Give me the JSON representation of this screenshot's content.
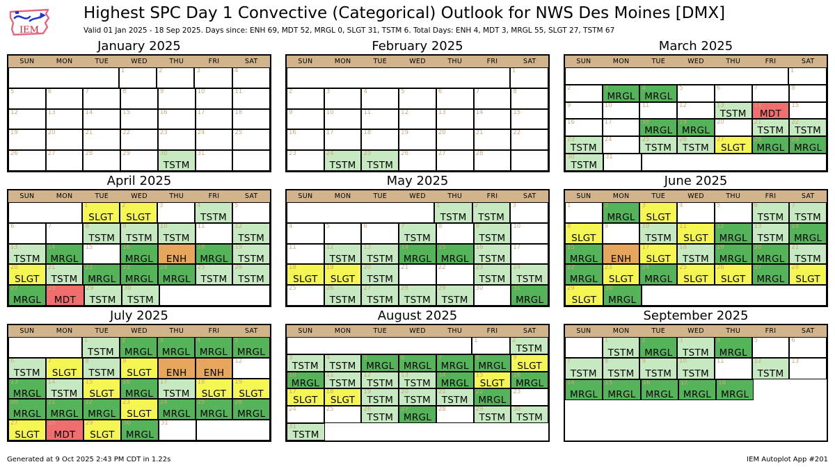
{
  "header": {
    "title": "Highest SPC Day 1 Convective (Categorical) Outlook for NWS Des Moines [DMX]",
    "subtitle": "Valid 01 Jan 2025 - 18 Sep 2025. Days since: ENH 69, MDT 52, MRGL 0, SLGT 31, TSTM 6. Total Days: ENH 4, MDT 3, MRGL 55, SLGT 27, TSTM 67",
    "logo_text": "IEM"
  },
  "footer": {
    "left": "Generated at 9 Oct 2025 2:43 PM CDT in 1.22s",
    "right": "IEM Autoplot App #201"
  },
  "chart_data": {
    "type": "heatmap",
    "title": "Highest SPC Day 1 Convective (Categorical) Outlook for NWS Des Moines [DMX]",
    "subtitle": "Valid 01 Jan 2025 - 18 Sep 2025. Days since: ENH 69, MDT 52, MRGL 0, SLGT 31, TSTM 6. Total Days: ENH 4, MDT 3, MRGL 55, SLGT 27, TSTM 67",
    "weekdays": [
      "SUN",
      "MON",
      "TUE",
      "WED",
      "THU",
      "FRI",
      "SAT"
    ],
    "categories": [
      "TSTM",
      "MRGL",
      "SLGT",
      "ENH",
      "MDT"
    ],
    "colors": {
      "TSTM": "#C6E9C1",
      "MRGL": "#55B45A",
      "SLGT": "#F5F554",
      "ENH": "#E6A75C",
      "MDT": "#F06E6E",
      "none": "#FFFFFF",
      "weekday_band": "#D2B48C",
      "day_number": "#CDA878",
      "grid_line": "#000000"
    },
    "cell_token_format": "\"bN\"=blank spanning N columns, \"bnN\"=borderless blank spanning N columns, \"D\"=day D no outlook, \"D:CAT\"=day D with highest categorical outlook CAT",
    "months": [
      {
        "name": "January 2025",
        "weeks": [
          [
            "b3",
            "1",
            "2",
            "3",
            "4"
          ],
          [
            "5",
            "6",
            "7",
            "8",
            "9",
            "10",
            "11"
          ],
          [
            "12",
            "13",
            "14",
            "15",
            "16",
            "17",
            "18"
          ],
          [
            "19",
            "20",
            "21",
            "22",
            "23",
            "24",
            "25"
          ],
          [
            "26",
            "27",
            "28",
            "29",
            "30:TSTM",
            "31",
            "b1"
          ]
        ]
      },
      {
        "name": "February 2025",
        "weeks": [
          [
            "b6",
            "1"
          ],
          [
            "2",
            "3",
            "4",
            "5",
            "6",
            "7",
            "8"
          ],
          [
            "9",
            "10",
            "11",
            "12",
            "13",
            "14",
            "15"
          ],
          [
            "16",
            "17",
            "18",
            "19",
            "20",
            "21",
            "22"
          ],
          [
            "23",
            "24:TSTM",
            "25:TSTM",
            "26",
            "27",
            "28",
            "b1"
          ]
        ]
      },
      {
        "name": "March 2025",
        "weeks": [
          [
            "b6",
            "1"
          ],
          [
            "2",
            "3:MRGL",
            "4:MRGL",
            "5",
            "6",
            "7",
            "8"
          ],
          [
            "9",
            "10",
            "11",
            "12",
            "13:TSTM",
            "14:MDT",
            "15"
          ],
          [
            "16",
            "17",
            "18:MRGL",
            "19:MRGL",
            "20",
            "21:TSTM",
            "22:TSTM"
          ],
          [
            "23:TSTM",
            "24",
            "25:TSTM",
            "26:TSTM",
            "27:SLGT",
            "28:MRGL",
            "29:MRGL"
          ],
          [
            "30:TSTM",
            "31",
            "b5"
          ]
        ]
      },
      {
        "name": "April 2025",
        "weeks": [
          [
            "b2",
            "1:SLGT",
            "2:SLGT",
            "3",
            "4:TSTM",
            "5"
          ],
          [
            "6",
            "7",
            "8:TSTM",
            "9:TSTM",
            "10:TSTM",
            "11",
            "12:TSTM"
          ],
          [
            "13:TSTM",
            "14:MRGL",
            "15",
            "16:MRGL",
            "17:ENH",
            "18:MRGL",
            "19:TSTM"
          ],
          [
            "20:SLGT",
            "21:TSTM",
            "22:MRGL",
            "23:MRGL",
            "24:MRGL",
            "25:TSTM",
            "26:TSTM"
          ],
          [
            "27:MRGL",
            "28:MDT",
            "29:TSTM",
            "30:TSTM",
            "b3"
          ]
        ]
      },
      {
        "name": "May 2025",
        "weeks": [
          [
            "b4",
            "1:TSTM",
            "2:TSTM",
            "3"
          ],
          [
            "4",
            "5",
            "6",
            "7:TSTM",
            "8",
            "9:TSTM",
            "10"
          ],
          [
            "11",
            "12:TSTM",
            "13:TSTM",
            "14:MRGL",
            "15:MRGL",
            "16:TSTM",
            "17"
          ],
          [
            "18:SLGT",
            "19:SLGT",
            "20:TSTM",
            "21",
            "22",
            "23:TSTM",
            "24:TSTM"
          ],
          [
            "25",
            "26:TSTM",
            "27:TSTM",
            "28:TSTM",
            "29:TSTM",
            "30",
            "31:MRGL"
          ]
        ]
      },
      {
        "name": "June 2025",
        "weeks": [
          [
            "1",
            "2:MRGL",
            "3:SLGT",
            "4",
            "5",
            "6:TSTM",
            "7:TSTM"
          ],
          [
            "8:SLGT",
            "9",
            "10:TSTM",
            "11:SLGT",
            "12:MRGL",
            "13:TSTM",
            "14:MRGL"
          ],
          [
            "15:MRGL",
            "16:ENH",
            "17:SLGT",
            "18:TSTM",
            "19:MRGL",
            "20:MRGL",
            "21:TSTM"
          ],
          [
            "22:MRGL",
            "23:SLGT",
            "24:MRGL",
            "25:SLGT",
            "26:SLGT",
            "27:MRGL",
            "28:SLGT"
          ],
          [
            "29:SLGT",
            "30:MRGL",
            "b5"
          ]
        ]
      },
      {
        "name": "July 2025",
        "weeks": [
          [
            "b2",
            "1:TSTM",
            "2:MRGL",
            "3:MRGL",
            "4:MRGL",
            "5:MRGL"
          ],
          [
            "6:TSTM",
            "7:SLGT",
            "8:TSTM",
            "9:SLGT",
            "10:ENH",
            "11:ENH",
            "12"
          ],
          [
            "13:MRGL",
            "14:TSTM",
            "15:SLGT",
            "16:MRGL",
            "17:TSTM",
            "18:SLGT",
            "19:SLGT"
          ],
          [
            "20:MRGL",
            "21:MRGL",
            "22:MRGL",
            "23:SLGT",
            "24:MRGL",
            "25:MRGL",
            "26:MRGL"
          ],
          [
            "27:SLGT",
            "28:MDT",
            "29:SLGT",
            "30:MRGL",
            "31",
            "b2"
          ]
        ]
      },
      {
        "name": "August 2025",
        "weeks": [
          [
            "b5",
            "1",
            "2:TSTM"
          ],
          [
            "3:TSTM",
            "4:TSTM",
            "5:MRGL",
            "6:MRGL",
            "7:MRGL",
            "8:MRGL",
            "9:SLGT"
          ],
          [
            "10:MRGL",
            "11:TSTM",
            "12:TSTM",
            "13:TSTM",
            "14:MRGL",
            "15:SLGT",
            "16:MRGL"
          ],
          [
            "17:SLGT",
            "18:SLGT",
            "19:TSTM",
            "20:TSTM",
            "21:TSTM",
            "22:MRGL",
            "23"
          ],
          [
            "24",
            "25",
            "26:TSTM",
            "27:MRGL",
            "28",
            "29:TSTM",
            "30:TSTM"
          ],
          [
            "31:TSTM",
            "bn6"
          ]
        ]
      },
      {
        "name": "September 2025",
        "weeks": [
          [
            "b1",
            "1:TSTM",
            "2:MRGL",
            "3:TSTM",
            "4:MRGL",
            "5",
            "6"
          ],
          [
            "7:TSTM",
            "8:TSTM",
            "9:TSTM",
            "10:TSTM",
            "11",
            "12:TSTM",
            "13"
          ],
          [
            "14:MRGL",
            "15:MRGL",
            "16:MRGL",
            "17:MRGL",
            "18:MRGL",
            "bn2"
          ]
        ],
        "filler_flex": 1.9
      }
    ]
  }
}
